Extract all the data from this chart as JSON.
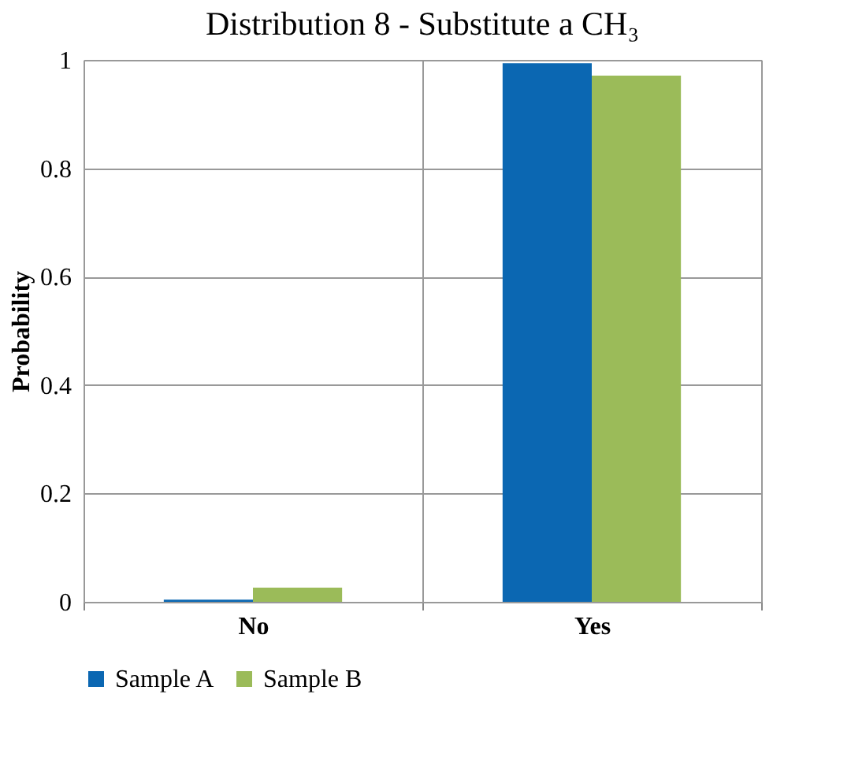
{
  "chart_data": {
    "type": "bar",
    "title": "Distribution 8 - Substitute a CH₃",
    "ylabel": "Probability",
    "categories": [
      "No",
      "Yes"
    ],
    "series": [
      {
        "name": "Sample A",
        "color": "#0b67b2",
        "values": [
          0.004,
          0.994
        ]
      },
      {
        "name": "Sample B",
        "color": "#9bbb59",
        "values": [
          0.026,
          0.971
        ]
      }
    ],
    "ylim": [
      0,
      1
    ],
    "yticks": [
      0,
      0.2,
      0.4,
      0.6,
      0.8,
      1
    ],
    "grid": true,
    "legend": "bottom"
  }
}
